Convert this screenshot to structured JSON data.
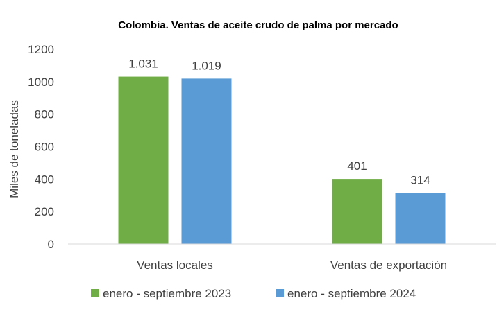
{
  "chart_data": {
    "type": "bar",
    "title": "Colombia. Ventas de aceite crudo de palma por mercado",
    "ylabel": "Miles de toneladas",
    "xlabel": "",
    "ylim": [
      0,
      1200
    ],
    "yticks": [
      "0",
      "200",
      "400",
      "600",
      "800",
      "1000",
      "1200"
    ],
    "grid": false,
    "legend_position": "bottom",
    "categories": [
      "Ventas locales",
      "Ventas de exportación"
    ],
    "series": [
      {
        "name": "enero - septiembre 2023",
        "color": "#70ad47",
        "values": [
          1031,
          401
        ],
        "labels": [
          "1.031",
          "401"
        ]
      },
      {
        "name": "enero - septiembre 2024",
        "color": "#5b9bd5",
        "values": [
          1019,
          314
        ],
        "labels": [
          "1.019",
          "314"
        ]
      }
    ]
  }
}
